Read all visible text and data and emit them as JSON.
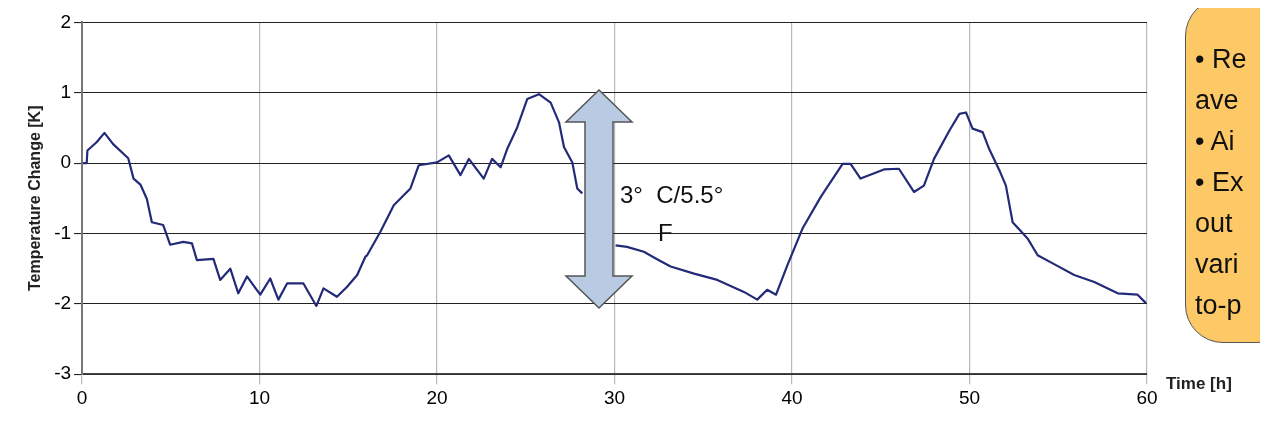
{
  "chart_data": {
    "type": "line",
    "ylabel": "Temperature Change [K]",
    "xlabel": "Time [h]",
    "xlim": [
      0,
      60
    ],
    "xticks": [
      0,
      10,
      20,
      30,
      40,
      50,
      60
    ],
    "ylim": [
      -3,
      2
    ],
    "yticks": [
      -3,
      -2,
      -1,
      0,
      1,
      2
    ],
    "grid": true,
    "marker": "none",
    "line_style": "solid",
    "annotations": [
      "3°  C/5.5°\nF",
      "• Re\nave\n• Ai\n• Ex\nout\nvari\nto-p"
    ],
    "series": [
      {
        "color": "#232a78",
        "x": [
          0.04,
          0.26,
          0.3,
          0.83,
          1.26,
          1.75,
          2.6,
          2.9,
          3.3,
          3.65,
          3.93,
          4.57,
          4.96,
          5.7,
          6.19,
          6.47,
          7.4,
          7.78,
          8.35,
          8.8,
          9.29,
          10.04,
          10.6,
          11.06,
          11.55,
          12.47,
          13.2,
          13.6,
          14.36,
          14.92,
          15.5,
          15.96,
          16.06,
          16.8,
          17.56,
          18.5,
          18.97,
          20,
          20.66,
          21.32,
          21.79,
          22.63,
          23.1,
          23.58,
          23.95,
          24.52,
          25.08,
          25.74,
          26.4,
          26.87,
          27.15,
          27.62,
          27.9,
          28.18,
          29.2,
          30.06,
          30.7,
          31.65,
          32.5,
          33.16,
          34.48,
          35.79,
          37.29,
          38.04,
          38.6,
          39.1,
          39.74,
          40.59,
          41.62,
          42.85,
          43.3,
          43.86,
          45.18,
          46.02,
          46.87,
          47.43,
          48,
          48.86,
          49.43,
          49.8,
          50.17,
          50.74,
          51.11,
          51.68,
          52.05,
          52.43,
          53.27,
          53.84,
          54.87,
          55.9,
          57.03,
          58.35,
          59.47,
          59.94
        ],
        "values": [
          0,
          0,
          0.18,
          0.3,
          0.43,
          0.27,
          0.07,
          -0.22,
          -0.31,
          -0.51,
          -0.84,
          -0.88,
          -1.16,
          -1.12,
          -1.14,
          -1.38,
          -1.36,
          -1.66,
          -1.5,
          -1.85,
          -1.61,
          -1.87,
          -1.64,
          -1.94,
          -1.71,
          -1.71,
          -2.03,
          -1.78,
          -1.9,
          -1.76,
          -1.59,
          -1.33,
          -1.31,
          -0.98,
          -0.6,
          -0.36,
          -0.03,
          0.01,
          0.11,
          -0.17,
          0.06,
          -0.22,
          0.06,
          -0.06,
          0.2,
          0.51,
          0.91,
          0.98,
          0.86,
          0.58,
          0.23,
          0.01,
          -0.36,
          -0.43,
          null,
          -1.17,
          -1.19,
          -1.26,
          -1.38,
          -1.47,
          -1.57,
          -1.66,
          -1.83,
          -1.94,
          -1.8,
          -1.87,
          -1.45,
          -0.93,
          -0.48,
          -0.01,
          -0.01,
          -0.22,
          -0.09,
          -0.08,
          -0.41,
          -0.32,
          0.06,
          0.46,
          0.7,
          0.72,
          0.49,
          0.44,
          0.2,
          -0.1,
          -0.32,
          -0.84,
          -1.07,
          -1.31,
          -1.45,
          -1.59,
          -1.69,
          -1.85,
          -1.87,
          -1.99
        ]
      }
    ]
  }
}
